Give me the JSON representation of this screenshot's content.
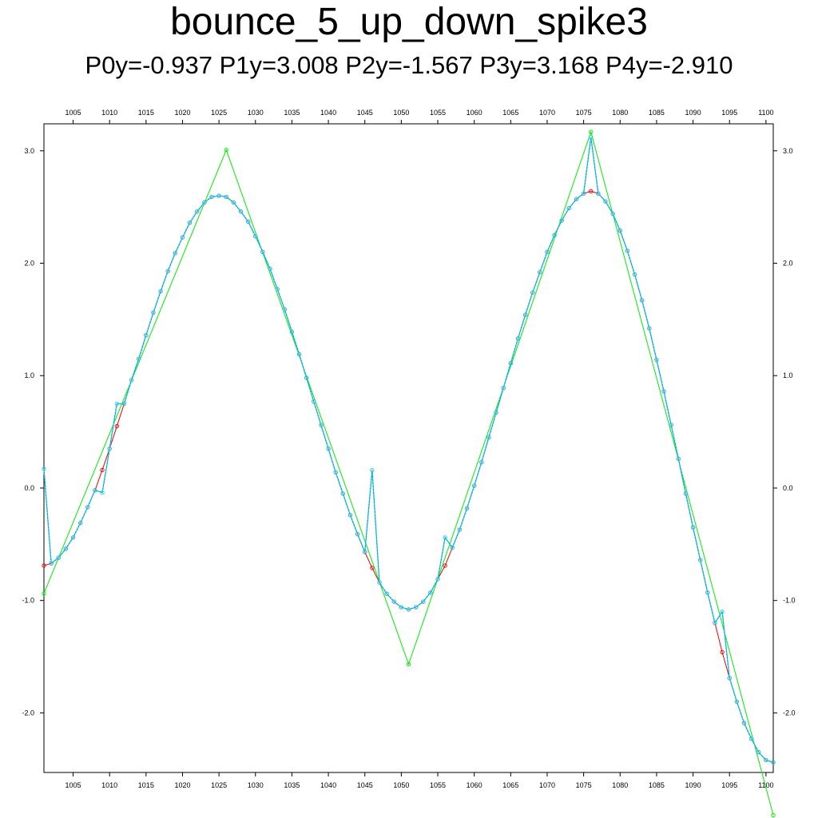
{
  "title": "bounce_5_up_down_spike3",
  "subtitle": "P0y=-0.937 P1y=3.008 P2y=-1.567 P3y=3.168 P4y=-2.910",
  "chart_data": {
    "type": "line",
    "title": "bounce_5_up_down_spike3",
    "subtitle": "P0y=-0.937 P1y=3.008 P2y=-1.567 P3y=3.168 P4y=-2.910",
    "xlim": [
      1001,
      1101
    ],
    "ylim": [
      -2.53,
      3.24
    ],
    "x_ticks": [
      1005,
      1010,
      1015,
      1020,
      1025,
      1030,
      1035,
      1040,
      1045,
      1050,
      1055,
      1060,
      1065,
      1070,
      1075,
      1080,
      1085,
      1090,
      1095,
      1100
    ],
    "y_ticks": [
      -2.0,
      -1.0,
      0.0,
      1.0,
      2.0,
      3.0
    ],
    "y_tick_labels": [
      "-2.0",
      "-1.0",
      "0.0",
      "1.0",
      "2.0",
      "3.0"
    ],
    "grid": false,
    "colors": {
      "control": "#00ee00",
      "smooth": "#ee0000",
      "spiked": "#22ccee",
      "spiked_marker": "#1188cc"
    },
    "series": [
      {
        "key": "control",
        "color": "#00ee00",
        "x": [
          1001,
          1026,
          1051,
          1076,
          1101
        ],
        "y": [
          -0.937,
          3.008,
          -1.567,
          3.168,
          -2.91
        ]
      },
      {
        "key": "smooth",
        "color": "#ee0000",
        "x": [
          1001,
          1002,
          1003,
          1004,
          1005,
          1006,
          1007,
          1008,
          1009,
          1010,
          1011,
          1012,
          1013,
          1014,
          1015,
          1016,
          1017,
          1018,
          1019,
          1020,
          1021,
          1022,
          1023,
          1024,
          1025,
          1026,
          1027,
          1028,
          1029,
          1030,
          1031,
          1032,
          1033,
          1034,
          1035,
          1036,
          1037,
          1038,
          1039,
          1040,
          1041,
          1042,
          1043,
          1044,
          1045,
          1046,
          1047,
          1048,
          1049,
          1050,
          1051,
          1052,
          1053,
          1054,
          1055,
          1056,
          1057,
          1058,
          1059,
          1060,
          1061,
          1062,
          1063,
          1064,
          1065,
          1066,
          1067,
          1068,
          1069,
          1070,
          1071,
          1072,
          1073,
          1074,
          1075,
          1076,
          1077,
          1078,
          1079,
          1080,
          1081,
          1082,
          1083,
          1084,
          1085,
          1086,
          1087,
          1088,
          1089,
          1090,
          1091,
          1092,
          1093,
          1094,
          1095,
          1096,
          1097,
          1098,
          1099,
          1100,
          1101
        ],
        "y": [
          -0.69,
          -0.67,
          -0.62,
          -0.54,
          -0.44,
          -0.31,
          -0.17,
          -0.02,
          0.16,
          0.35,
          0.55,
          0.75,
          0.96,
          1.15,
          1.36,
          1.56,
          1.75,
          1.93,
          2.09,
          2.23,
          2.36,
          2.46,
          2.54,
          2.59,
          2.6,
          2.59,
          2.54,
          2.46,
          2.37,
          2.24,
          2.1,
          1.95,
          1.77,
          1.59,
          1.39,
          1.19,
          0.98,
          0.77,
          0.56,
          0.35,
          0.14,
          -0.05,
          -0.24,
          -0.41,
          -0.57,
          -0.71,
          -0.84,
          -0.94,
          -1.01,
          -1.06,
          -1.08,
          -1.06,
          -1.01,
          -0.93,
          -0.81,
          -0.69,
          -0.53,
          -0.37,
          -0.18,
          0.02,
          0.23,
          0.45,
          0.67,
          0.89,
          1.11,
          1.33,
          1.54,
          1.74,
          1.92,
          2.1,
          2.25,
          2.38,
          2.49,
          2.57,
          2.62,
          2.64,
          2.62,
          2.55,
          2.44,
          2.29,
          2.11,
          1.9,
          1.67,
          1.42,
          1.14,
          0.86,
          0.56,
          0.26,
          -0.05,
          -0.35,
          -0.64,
          -0.93,
          -1.2,
          -1.46,
          -1.69,
          -1.9,
          -2.09,
          -2.23,
          -2.35,
          -2.42,
          -2.44
        ]
      },
      {
        "key": "spiked",
        "color": "#22ccee",
        "x": [
          1001,
          1002,
          1003,
          1004,
          1005,
          1006,
          1007,
          1008,
          1009,
          1010,
          1011,
          1012,
          1013,
          1014,
          1015,
          1016,
          1017,
          1018,
          1019,
          1020,
          1021,
          1022,
          1023,
          1024,
          1025,
          1026,
          1027,
          1028,
          1029,
          1030,
          1031,
          1032,
          1033,
          1034,
          1035,
          1036,
          1037,
          1038,
          1039,
          1040,
          1041,
          1042,
          1043,
          1044,
          1045,
          1046,
          1047,
          1048,
          1049,
          1050,
          1051,
          1052,
          1053,
          1054,
          1055,
          1056,
          1057,
          1058,
          1059,
          1060,
          1061,
          1062,
          1063,
          1064,
          1065,
          1066,
          1067,
          1068,
          1069,
          1070,
          1071,
          1072,
          1073,
          1074,
          1075,
          1076,
          1077,
          1078,
          1079,
          1080,
          1081,
          1082,
          1083,
          1084,
          1085,
          1086,
          1087,
          1088,
          1089,
          1090,
          1091,
          1092,
          1093,
          1094,
          1095,
          1096,
          1097,
          1098,
          1099,
          1100,
          1101
        ],
        "y": [
          0.17,
          -0.67,
          -0.62,
          -0.54,
          -0.44,
          -0.31,
          -0.17,
          -0.02,
          -0.04,
          0.35,
          0.75,
          0.75,
          0.96,
          1.15,
          1.36,
          1.56,
          1.75,
          1.93,
          2.09,
          2.23,
          2.36,
          2.46,
          2.54,
          2.59,
          2.6,
          2.59,
          2.54,
          2.46,
          2.37,
          2.24,
          2.1,
          1.95,
          1.77,
          1.59,
          1.39,
          1.19,
          0.98,
          0.77,
          0.56,
          0.35,
          0.14,
          -0.05,
          -0.24,
          -0.41,
          -0.57,
          0.16,
          -0.84,
          -0.94,
          -1.01,
          -1.06,
          -1.08,
          -1.06,
          -1.01,
          -0.93,
          -0.81,
          -0.44,
          -0.53,
          -0.37,
          -0.18,
          0.02,
          0.23,
          0.45,
          0.67,
          0.89,
          1.11,
          1.33,
          1.54,
          1.74,
          1.92,
          2.1,
          2.25,
          2.38,
          2.49,
          2.57,
          2.62,
          3.12,
          2.62,
          2.55,
          2.44,
          2.29,
          2.11,
          1.9,
          1.67,
          1.42,
          1.14,
          0.86,
          0.56,
          0.26,
          -0.05,
          -0.35,
          -0.64,
          -0.93,
          -1.2,
          -1.1,
          -1.69,
          -1.9,
          -2.09,
          -2.23,
          -2.35,
          -2.42,
          -2.44
        ]
      }
    ]
  }
}
